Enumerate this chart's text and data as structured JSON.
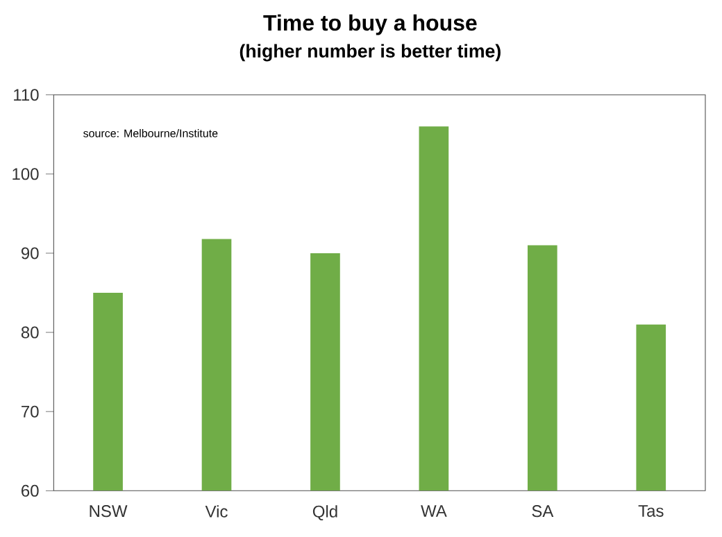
{
  "chart_data": {
    "type": "bar",
    "title": "Time to buy a house",
    "subtitle": "(higher number is better time)",
    "categories": [
      "NSW",
      "Vic",
      "Qld",
      "WA",
      "SA",
      "Tas"
    ],
    "values": [
      85,
      91.8,
      90,
      106,
      91,
      81
    ],
    "color": "#70ad47",
    "ylim": [
      60,
      110
    ],
    "yticks": [
      60,
      70,
      80,
      90,
      100,
      110
    ],
    "grid": false,
    "annotations": [
      "source:  Melbourne/Institute"
    ]
  }
}
